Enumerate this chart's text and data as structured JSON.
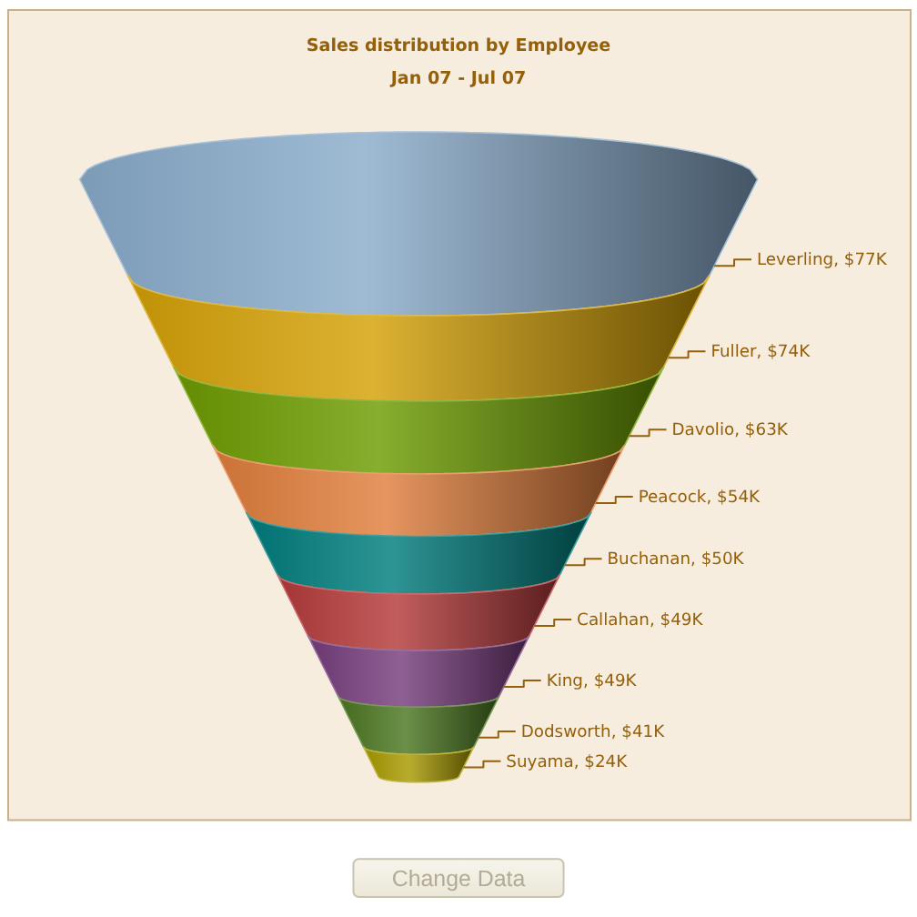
{
  "chart_data": {
    "type": "other",
    "title": "Sales distribution by Employee",
    "subtitle": "Jan 07 - Jul 07",
    "values": [
      77,
      74,
      63,
      54,
      50,
      49,
      49,
      41,
      24
    ],
    "value_labels": [
      "Leverling, $77K",
      "Fuller, $74K",
      "Davolio, $63K",
      "Peacock, $54K",
      "Buchanan, $50K",
      "Callahan, $49K",
      "King, $49K",
      "Dodsworth, $41K",
      "Suyama, $24K"
    ],
    "colors": [
      "#8aaccb",
      "#d4a106",
      "#6d9c00",
      "#e07e3c",
      "#007c7c",
      "#b53a3a",
      "#763d7c",
      "#4a7620",
      "#a89a00"
    ],
    "annotations": [
      "Change Data"
    ]
  }
}
